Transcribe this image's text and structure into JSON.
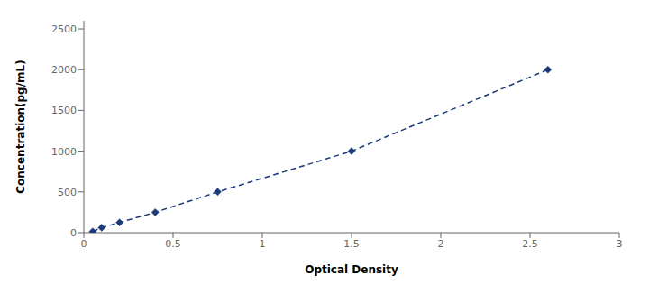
{
  "chart_data": {
    "type": "line",
    "x": [
      0.05,
      0.1,
      0.2,
      0.4,
      0.75,
      1.5,
      2.6
    ],
    "values": [
      15,
      62,
      125,
      250,
      500,
      1000,
      2000
    ],
    "color": "#1a3a7a",
    "line_style": "dashed",
    "marker": "diamond",
    "xlabel": "Optical Density",
    "ylabel": "Concentration(pg/mL)",
    "xlim": [
      0,
      3
    ],
    "ylim": [
      0,
      2600
    ],
    "xticks": [
      0,
      0.5,
      1,
      1.5,
      2,
      2.5,
      3
    ],
    "yticks": [
      0,
      500,
      1000,
      1500,
      2000,
      2500
    ],
    "grid": false
  }
}
